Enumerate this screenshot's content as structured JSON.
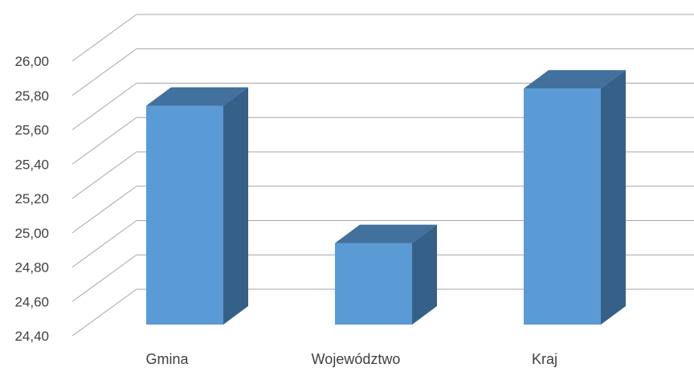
{
  "chart_data": {
    "type": "bar",
    "style": "3d-column",
    "categories": [
      "Gmina",
      "Województwo",
      "Kraj"
    ],
    "values": [
      25.74,
      24.94,
      25.84
    ],
    "ylim": [
      24.4,
      26.0
    ],
    "yticks": [
      "24,40",
      "24,60",
      "24,80",
      "25,00",
      "25,20",
      "25,40",
      "25,60",
      "25,80",
      "26,00"
    ],
    "grid": true,
    "legend": "none",
    "colors": {
      "bar_front": "#5b9bd5",
      "bar_top": "#41719c",
      "bar_side": "#356088",
      "grid": "#a6a6a6",
      "text": "#404040"
    }
  }
}
